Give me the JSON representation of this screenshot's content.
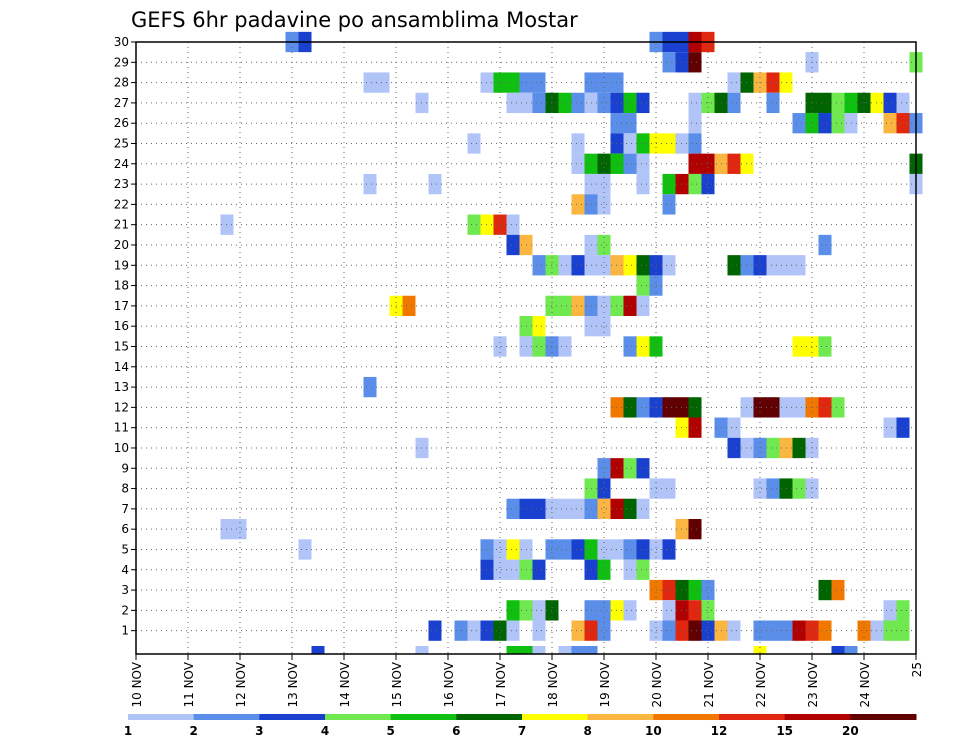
{
  "chart_data": {
    "type": "heatmap",
    "title": "GEFS 6hr padavine po ansamblima Mostar",
    "xlabel": "",
    "ylabel": "",
    "x_ticks": [
      "10 NOV",
      "11 NOV",
      "12 NOV",
      "13 NOV",
      "14 NOV",
      "15 NOV",
      "16 NOV",
      "17 NOV",
      "18 NOV",
      "19 NOV",
      "20 NOV",
      "21 NOV",
      "22 NOV",
      "23 NOV",
      "24 NOV",
      "25"
    ],
    "xlim_days": [
      10,
      25
    ],
    "y_ticks": [
      "1",
      "2",
      "3",
      "4",
      "5",
      "6",
      "7",
      "8",
      "9",
      "10",
      "11",
      "12",
      "13",
      "14",
      "15",
      "16",
      "17",
      "18",
      "19",
      "20",
      "21",
      "22",
      "23",
      "24",
      "25",
      "26",
      "27",
      "28",
      "29",
      "30"
    ],
    "ylim": [
      0,
      30
    ],
    "grid": true,
    "colorbar": {
      "levels": [
        "1",
        "2",
        "3",
        "4",
        "5",
        "6",
        "7",
        "8",
        "10",
        "12",
        "15",
        "20"
      ],
      "colors": [
        "#b0c4f8",
        "#5a8ee8",
        "#1a40d0",
        "#70e850",
        "#10c010",
        "#006400",
        "#ffff00",
        "#fab640",
        "#f07800",
        "#e02810",
        "#b00000",
        "#600000"
      ]
    },
    "cells": [
      [
        13.0,
        30,
        2
      ],
      [
        13.25,
        30,
        3
      ],
      [
        20.0,
        30,
        2
      ],
      [
        20.25,
        30,
        3
      ],
      [
        20.5,
        30,
        3
      ],
      [
        20.75,
        30,
        11
      ],
      [
        21.0,
        30,
        10
      ],
      [
        20.25,
        29,
        2
      ],
      [
        20.5,
        29,
        3
      ],
      [
        20.75,
        29,
        12
      ],
      [
        23.0,
        29,
        1
      ],
      [
        25.0,
        29,
        4
      ],
      [
        14.5,
        28,
        1
      ],
      [
        14.75,
        28,
        1
      ],
      [
        16.75,
        28,
        1
      ],
      [
        17.0,
        28,
        5
      ],
      [
        17.25,
        28,
        5
      ],
      [
        17.5,
        28,
        2
      ],
      [
        17.75,
        28,
        2
      ],
      [
        18.75,
        28,
        2
      ],
      [
        19.0,
        28,
        2
      ],
      [
        19.25,
        28,
        2
      ],
      [
        21.5,
        28,
        1
      ],
      [
        21.75,
        28,
        6
      ],
      [
        22.0,
        28,
        8
      ],
      [
        22.25,
        28,
        10
      ],
      [
        22.5,
        28,
        7
      ],
      [
        15.5,
        27,
        1
      ],
      [
        17.25,
        27,
        1
      ],
      [
        17.5,
        27,
        1
      ],
      [
        17.75,
        27,
        2
      ],
      [
        18.0,
        27,
        6
      ],
      [
        18.25,
        27,
        5
      ],
      [
        18.5,
        27,
        2
      ],
      [
        18.75,
        27,
        1
      ],
      [
        19.0,
        27,
        2
      ],
      [
        19.25,
        27,
        3
      ],
      [
        19.5,
        27,
        5
      ],
      [
        19.75,
        27,
        3
      ],
      [
        20.75,
        27,
        1
      ],
      [
        21.0,
        27,
        4
      ],
      [
        21.25,
        27,
        6
      ],
      [
        21.5,
        27,
        2
      ],
      [
        22.25,
        27,
        2
      ],
      [
        23.0,
        27,
        6
      ],
      [
        23.25,
        27,
        6
      ],
      [
        23.5,
        27,
        4
      ],
      [
        23.75,
        27,
        5
      ],
      [
        24.0,
        27,
        6
      ],
      [
        24.25,
        27,
        7
      ],
      [
        24.5,
        27,
        3
      ],
      [
        24.75,
        27,
        1
      ],
      [
        19.25,
        26,
        2
      ],
      [
        19.5,
        26,
        2
      ],
      [
        20.75,
        26,
        1
      ],
      [
        22.75,
        26,
        2
      ],
      [
        23.0,
        26,
        5
      ],
      [
        23.25,
        26,
        3
      ],
      [
        23.5,
        26,
        4
      ],
      [
        23.75,
        26,
        1
      ],
      [
        24.5,
        26,
        8
      ],
      [
        24.75,
        26,
        10
      ],
      [
        25.0,
        26,
        2
      ],
      [
        16.5,
        25,
        1
      ],
      [
        18.5,
        25,
        1
      ],
      [
        19.25,
        25,
        3
      ],
      [
        19.5,
        25,
        1
      ],
      [
        19.75,
        25,
        5
      ],
      [
        20.0,
        25,
        7
      ],
      [
        20.25,
        25,
        7
      ],
      [
        20.5,
        25,
        1
      ],
      [
        20.75,
        25,
        2
      ],
      [
        18.5,
        24,
        1
      ],
      [
        18.75,
        24,
        5
      ],
      [
        19.0,
        24,
        6
      ],
      [
        19.25,
        24,
        5
      ],
      [
        19.5,
        24,
        2
      ],
      [
        19.75,
        24,
        1
      ],
      [
        20.75,
        24,
        11
      ],
      [
        21.0,
        24,
        11
      ],
      [
        21.25,
        24,
        8
      ],
      [
        21.5,
        24,
        10
      ],
      [
        21.75,
        24,
        7
      ],
      [
        25.0,
        24,
        6
      ],
      [
        14.5,
        23,
        1
      ],
      [
        15.75,
        23,
        1
      ],
      [
        18.75,
        23,
        1
      ],
      [
        19.0,
        23,
        1
      ],
      [
        19.75,
        23,
        1
      ],
      [
        20.25,
        23,
        5
      ],
      [
        20.5,
        23,
        11
      ],
      [
        20.75,
        23,
        4
      ],
      [
        21.0,
        23,
        3
      ],
      [
        25.0,
        23,
        1
      ],
      [
        18.5,
        22,
        8
      ],
      [
        18.75,
        22,
        2
      ],
      [
        19.0,
        22,
        1
      ],
      [
        20.25,
        22,
        2
      ],
      [
        11.75,
        21,
        1
      ],
      [
        16.5,
        21,
        4
      ],
      [
        16.75,
        21,
        7
      ],
      [
        17.0,
        21,
        10
      ],
      [
        17.25,
        21,
        1
      ],
      [
        17.25,
        20,
        3
      ],
      [
        17.5,
        20,
        8
      ],
      [
        18.75,
        20,
        1
      ],
      [
        19.0,
        20,
        4
      ],
      [
        23.25,
        20,
        2
      ],
      [
        17.75,
        19,
        2
      ],
      [
        18.0,
        19,
        4
      ],
      [
        18.25,
        19,
        1
      ],
      [
        18.5,
        19,
        3
      ],
      [
        18.75,
        19,
        1
      ],
      [
        19.0,
        19,
        1
      ],
      [
        19.25,
        19,
        8
      ],
      [
        19.5,
        19,
        7
      ],
      [
        19.75,
        19,
        6
      ],
      [
        20.0,
        19,
        3
      ],
      [
        20.25,
        19,
        1
      ],
      [
        21.5,
        19,
        6
      ],
      [
        21.75,
        19,
        2
      ],
      [
        22.0,
        19,
        3
      ],
      [
        22.25,
        19,
        1
      ],
      [
        22.5,
        19,
        1
      ],
      [
        22.75,
        19,
        1
      ],
      [
        19.75,
        18,
        4
      ],
      [
        20.0,
        18,
        2
      ],
      [
        15.0,
        17,
        7
      ],
      [
        15.25,
        17,
        9
      ],
      [
        18.0,
        17,
        4
      ],
      [
        18.25,
        17,
        4
      ],
      [
        18.5,
        17,
        8
      ],
      [
        18.75,
        17,
        2
      ],
      [
        19.0,
        17,
        1
      ],
      [
        19.25,
        17,
        4
      ],
      [
        19.5,
        17,
        11
      ],
      [
        19.75,
        17,
        1
      ],
      [
        17.5,
        16,
        4
      ],
      [
        17.75,
        16,
        7
      ],
      [
        18.75,
        16,
        1
      ],
      [
        19.0,
        16,
        1
      ],
      [
        17.0,
        15,
        1
      ],
      [
        17.5,
        15,
        1
      ],
      [
        17.75,
        15,
        4
      ],
      [
        18.0,
        15,
        2
      ],
      [
        18.25,
        15,
        1
      ],
      [
        19.5,
        15,
        2
      ],
      [
        19.75,
        15,
        7
      ],
      [
        20.0,
        15,
        5
      ],
      [
        22.75,
        15,
        7
      ],
      [
        23.0,
        15,
        7
      ],
      [
        23.25,
        15,
        4
      ],
      [
        14.5,
        13,
        2
      ],
      [
        19.25,
        12,
        9
      ],
      [
        19.5,
        12,
        6
      ],
      [
        19.75,
        12,
        2
      ],
      [
        20.0,
        12,
        3
      ],
      [
        20.25,
        12,
        12
      ],
      [
        20.5,
        12,
        12
      ],
      [
        20.75,
        12,
        6
      ],
      [
        21.75,
        12,
        1
      ],
      [
        22.0,
        12,
        12
      ],
      [
        22.25,
        12,
        12
      ],
      [
        22.5,
        12,
        1
      ],
      [
        22.75,
        12,
        1
      ],
      [
        23.0,
        12,
        9
      ],
      [
        23.25,
        12,
        10
      ],
      [
        23.5,
        12,
        4
      ],
      [
        20.5,
        11,
        7
      ],
      [
        20.75,
        11,
        11
      ],
      [
        21.25,
        11,
        2
      ],
      [
        21.5,
        11,
        1
      ],
      [
        24.5,
        11,
        1
      ],
      [
        24.75,
        11,
        3
      ],
      [
        15.5,
        10,
        1
      ],
      [
        21.5,
        10,
        3
      ],
      [
        21.75,
        10,
        1
      ],
      [
        22.0,
        10,
        2
      ],
      [
        22.25,
        10,
        4
      ],
      [
        22.5,
        10,
        8
      ],
      [
        22.75,
        10,
        6
      ],
      [
        23.0,
        10,
        1
      ],
      [
        19.0,
        9,
        2
      ],
      [
        19.25,
        9,
        11
      ],
      [
        19.5,
        9,
        4
      ],
      [
        19.75,
        9,
        3
      ],
      [
        18.75,
        8,
        4
      ],
      [
        19.0,
        8,
        3
      ],
      [
        20.0,
        8,
        1
      ],
      [
        20.25,
        8,
        1
      ],
      [
        22.0,
        8,
        1
      ],
      [
        22.25,
        8,
        2
      ],
      [
        22.5,
        8,
        6
      ],
      [
        22.75,
        8,
        4
      ],
      [
        23.0,
        8,
        1
      ],
      [
        17.25,
        7,
        2
      ],
      [
        17.5,
        7,
        3
      ],
      [
        17.75,
        7,
        3
      ],
      [
        18.0,
        7,
        1
      ],
      [
        18.25,
        7,
        1
      ],
      [
        18.5,
        7,
        1
      ],
      [
        18.75,
        7,
        2
      ],
      [
        19.0,
        7,
        8
      ],
      [
        19.25,
        7,
        11
      ],
      [
        19.5,
        7,
        6
      ],
      [
        19.75,
        7,
        1
      ],
      [
        11.75,
        6,
        1
      ],
      [
        12.0,
        6,
        1
      ],
      [
        20.5,
        6,
        8
      ],
      [
        20.75,
        6,
        12
      ],
      [
        13.25,
        5,
        1
      ],
      [
        16.75,
        5,
        2
      ],
      [
        17.0,
        5,
        1
      ],
      [
        17.25,
        5,
        7
      ],
      [
        17.5,
        5,
        1
      ],
      [
        18.0,
        5,
        2
      ],
      [
        18.25,
        5,
        2
      ],
      [
        18.5,
        5,
        3
      ],
      [
        18.75,
        5,
        5
      ],
      [
        19.0,
        5,
        1
      ],
      [
        19.25,
        5,
        1
      ],
      [
        19.5,
        5,
        2
      ],
      [
        19.75,
        5,
        3
      ],
      [
        20.0,
        5,
        1
      ],
      [
        20.25,
        5,
        3
      ],
      [
        16.75,
        4,
        3
      ],
      [
        17.0,
        4,
        1
      ],
      [
        17.25,
        4,
        1
      ],
      [
        17.5,
        4,
        4
      ],
      [
        17.75,
        4,
        3
      ],
      [
        18.75,
        4,
        3
      ],
      [
        19.0,
        4,
        5
      ],
      [
        19.5,
        4,
        1
      ],
      [
        19.75,
        4,
        4
      ],
      [
        20.0,
        3,
        9
      ],
      [
        20.25,
        3,
        10
      ],
      [
        20.5,
        3,
        6
      ],
      [
        20.75,
        3,
        5
      ],
      [
        21.0,
        3,
        2
      ],
      [
        23.25,
        3,
        6
      ],
      [
        23.5,
        3,
        9
      ],
      [
        17.25,
        2,
        5
      ],
      [
        17.5,
        2,
        4
      ],
      [
        17.75,
        2,
        1
      ],
      [
        18.0,
        2,
        6
      ],
      [
        18.75,
        2,
        2
      ],
      [
        19.0,
        2,
        2
      ],
      [
        19.25,
        2,
        7
      ],
      [
        19.5,
        2,
        1
      ],
      [
        20.25,
        2,
        1
      ],
      [
        20.5,
        2,
        11
      ],
      [
        20.75,
        2,
        10
      ],
      [
        21.0,
        2,
        4
      ],
      [
        24.5,
        2,
        1
      ],
      [
        24.75,
        2,
        4
      ],
      [
        15.75,
        1,
        3
      ],
      [
        16.25,
        1,
        2
      ],
      [
        16.5,
        1,
        1
      ],
      [
        16.75,
        1,
        3
      ],
      [
        17.0,
        1,
        6
      ],
      [
        17.25,
        1,
        1
      ],
      [
        17.75,
        1,
        1
      ],
      [
        18.5,
        1,
        8
      ],
      [
        18.75,
        1,
        10
      ],
      [
        19.0,
        1,
        2
      ],
      [
        20.0,
        1,
        1
      ],
      [
        20.25,
        1,
        2
      ],
      [
        20.5,
        1,
        10
      ],
      [
        20.75,
        1,
        12
      ],
      [
        21.0,
        1,
        3
      ],
      [
        21.25,
        1,
        8
      ],
      [
        21.5,
        1,
        1
      ],
      [
        22.0,
        1,
        2
      ],
      [
        22.25,
        1,
        2
      ],
      [
        22.5,
        1,
        2
      ],
      [
        22.75,
        1,
        11
      ],
      [
        23.0,
        1,
        10
      ],
      [
        23.25,
        1,
        9
      ],
      [
        24.0,
        1,
        9
      ],
      [
        24.25,
        1,
        1
      ],
      [
        24.5,
        1,
        4
      ],
      [
        24.75,
        1,
        4
      ],
      [
        13.5,
        0,
        3
      ],
      [
        15.5,
        0,
        1
      ],
      [
        17.25,
        0,
        5
      ],
      [
        17.5,
        0,
        5
      ],
      [
        17.75,
        0,
        1
      ],
      [
        18.25,
        0,
        1
      ],
      [
        18.5,
        0,
        2
      ],
      [
        18.75,
        0,
        2
      ],
      [
        22.0,
        0,
        7
      ],
      [
        23.5,
        0,
        3
      ],
      [
        23.75,
        0,
        2
      ]
    ]
  }
}
